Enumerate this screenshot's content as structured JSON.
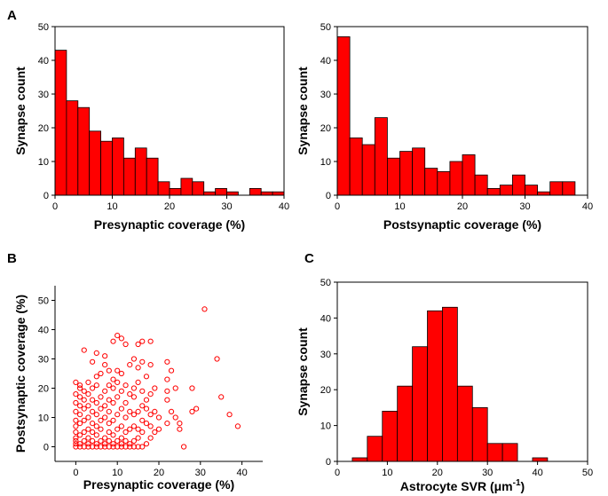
{
  "chart_data": [
    {
      "type": "bar",
      "panel_label": "A",
      "xlabel": "Presynaptic coverage (%)",
      "ylabel": "Synapse count",
      "xlim": [
        0,
        40
      ],
      "ylim": [
        0,
        50
      ],
      "xticks": [
        0,
        10,
        20,
        30,
        40
      ],
      "yticks": [
        0,
        10,
        20,
        30,
        40,
        50
      ],
      "bin_width": 2,
      "bins": [
        {
          "x": 0,
          "count": 43
        },
        {
          "x": 2,
          "count": 28
        },
        {
          "x": 4,
          "count": 26
        },
        {
          "x": 6,
          "count": 19
        },
        {
          "x": 8,
          "count": 16
        },
        {
          "x": 10,
          "count": 17
        },
        {
          "x": 12,
          "count": 11
        },
        {
          "x": 14,
          "count": 14
        },
        {
          "x": 16,
          "count": 11
        },
        {
          "x": 18,
          "count": 4
        },
        {
          "x": 20,
          "count": 2
        },
        {
          "x": 22,
          "count": 5
        },
        {
          "x": 24,
          "count": 4
        },
        {
          "x": 26,
          "count": 1
        },
        {
          "x": 28,
          "count": 2
        },
        {
          "x": 30,
          "count": 1
        },
        {
          "x": 34,
          "count": 2
        },
        {
          "x": 36,
          "count": 1
        },
        {
          "x": 38,
          "count": 1
        }
      ],
      "grid": false,
      "bar_color": "#ff0000"
    },
    {
      "type": "bar",
      "panel_label": "",
      "xlabel": "Postsynaptic coverage (%)",
      "ylabel": "Synapse count",
      "xlim": [
        0,
        40
      ],
      "ylim": [
        0,
        50
      ],
      "xticks": [
        0,
        10,
        20,
        30,
        40
      ],
      "yticks": [
        0,
        10,
        20,
        30,
        40,
        50
      ],
      "bin_width": 2,
      "bins": [
        {
          "x": 0,
          "count": 47
        },
        {
          "x": 2,
          "count": 17
        },
        {
          "x": 4,
          "count": 15
        },
        {
          "x": 6,
          "count": 23
        },
        {
          "x": 8,
          "count": 11
        },
        {
          "x": 10,
          "count": 13
        },
        {
          "x": 12,
          "count": 14
        },
        {
          "x": 14,
          "count": 8
        },
        {
          "x": 16,
          "count": 7
        },
        {
          "x": 18,
          "count": 10
        },
        {
          "x": 20,
          "count": 12
        },
        {
          "x": 22,
          "count": 6
        },
        {
          "x": 24,
          "count": 2
        },
        {
          "x": 26,
          "count": 3
        },
        {
          "x": 28,
          "count": 6
        },
        {
          "x": 30,
          "count": 3
        },
        {
          "x": 32,
          "count": 1
        },
        {
          "x": 34,
          "count": 4
        },
        {
          "x": 36,
          "count": 4
        }
      ],
      "grid": false,
      "bar_color": "#ff0000"
    },
    {
      "type": "scatter",
      "panel_label": "B",
      "xlabel": "Presynaptic coverage (%)",
      "ylabel": "Postsynaptic coverage (%)",
      "xlim": [
        -5,
        45
      ],
      "ylim": [
        -5,
        55
      ],
      "xticks": [
        0,
        10,
        20,
        30,
        40
      ],
      "yticks": [
        0,
        10,
        20,
        30,
        40,
        50
      ],
      "marker": "open-circle",
      "marker_color": "#ff0000",
      "points": [
        [
          0,
          0
        ],
        [
          0,
          1
        ],
        [
          0,
          2
        ],
        [
          0,
          3
        ],
        [
          0,
          5
        ],
        [
          0,
          7
        ],
        [
          0,
          9
        ],
        [
          0,
          12
        ],
        [
          0,
          15
        ],
        [
          0,
          18
        ],
        [
          0,
          22
        ],
        [
          1,
          0
        ],
        [
          1,
          1
        ],
        [
          1,
          4
        ],
        [
          1,
          8
        ],
        [
          1,
          11
        ],
        [
          1,
          14
        ],
        [
          1,
          17
        ],
        [
          1,
          20
        ],
        [
          1,
          21
        ],
        [
          2,
          0
        ],
        [
          2,
          2
        ],
        [
          2,
          5
        ],
        [
          2,
          9
        ],
        [
          2,
          13
        ],
        [
          2,
          16
        ],
        [
          2,
          19
        ],
        [
          2,
          33
        ],
        [
          3,
          0
        ],
        [
          3,
          1
        ],
        [
          3,
          3
        ],
        [
          3,
          6
        ],
        [
          3,
          10
        ],
        [
          3,
          14
        ],
        [
          3,
          18
        ],
        [
          3,
          22
        ],
        [
          4,
          0
        ],
        [
          4,
          2
        ],
        [
          4,
          5
        ],
        [
          4,
          8
        ],
        [
          4,
          12
        ],
        [
          4,
          16
        ],
        [
          4,
          20
        ],
        [
          4,
          29
        ],
        [
          5,
          0
        ],
        [
          5,
          1
        ],
        [
          5,
          4
        ],
        [
          5,
          7
        ],
        [
          5,
          11
        ],
        [
          5,
          15
        ],
        [
          5,
          21
        ],
        [
          5,
          24
        ],
        [
          5,
          32
        ],
        [
          6,
          0
        ],
        [
          6,
          2
        ],
        [
          6,
          6
        ],
        [
          6,
          9
        ],
        [
          6,
          13
        ],
        [
          6,
          17
        ],
        [
          6,
          25
        ],
        [
          7,
          0
        ],
        [
          7,
          1
        ],
        [
          7,
          3
        ],
        [
          7,
          10
        ],
        [
          7,
          14
        ],
        [
          7,
          19
        ],
        [
          7,
          28
        ],
        [
          7,
          31
        ],
        [
          8,
          0
        ],
        [
          8,
          2
        ],
        [
          8,
          5
        ],
        [
          8,
          8
        ],
        [
          8,
          12
        ],
        [
          8,
          16
        ],
        [
          8,
          21
        ],
        [
          8,
          26
        ],
        [
          9,
          0
        ],
        [
          9,
          1
        ],
        [
          9,
          4
        ],
        [
          9,
          9
        ],
        [
          9,
          15
        ],
        [
          9,
          20
        ],
        [
          9,
          23
        ],
        [
          9,
          36
        ],
        [
          10,
          0
        ],
        [
          10,
          2
        ],
        [
          10,
          6
        ],
        [
          10,
          11
        ],
        [
          10,
          17
        ],
        [
          10,
          22
        ],
        [
          10,
          26
        ],
        [
          10,
          38
        ],
        [
          11,
          0
        ],
        [
          11,
          1
        ],
        [
          11,
          3
        ],
        [
          11,
          7
        ],
        [
          11,
          13
        ],
        [
          11,
          19
        ],
        [
          11,
          25
        ],
        [
          11,
          37
        ],
        [
          12,
          0
        ],
        [
          12,
          2
        ],
        [
          12,
          5
        ],
        [
          12,
          10
        ],
        [
          12,
          15
        ],
        [
          12,
          21
        ],
        [
          12,
          35
        ],
        [
          13,
          0
        ],
        [
          13,
          1
        ],
        [
          13,
          6
        ],
        [
          13,
          12
        ],
        [
          13,
          18
        ],
        [
          13,
          28
        ],
        [
          14,
          0
        ],
        [
          14,
          2
        ],
        [
          14,
          7
        ],
        [
          14,
          11
        ],
        [
          14,
          17
        ],
        [
          14,
          20
        ],
        [
          14,
          30
        ],
        [
          15,
          0
        ],
        [
          15,
          3
        ],
        [
          15,
          6
        ],
        [
          15,
          12
        ],
        [
          15,
          22
        ],
        [
          15,
          27
        ],
        [
          15,
          35
        ],
        [
          16,
          0
        ],
        [
          16,
          5
        ],
        [
          16,
          9
        ],
        [
          16,
          14
        ],
        [
          16,
          19
        ],
        [
          16,
          29
        ],
        [
          16,
          36
        ],
        [
          17,
          1
        ],
        [
          17,
          8
        ],
        [
          17,
          13
        ],
        [
          17,
          24
        ],
        [
          17,
          16
        ],
        [
          18,
          3
        ],
        [
          18,
          7
        ],
        [
          18,
          11
        ],
        [
          18,
          18
        ],
        [
          18,
          28
        ],
        [
          18,
          36
        ],
        [
          19,
          5
        ],
        [
          19,
          12
        ],
        [
          19,
          20
        ],
        [
          20,
          6
        ],
        [
          20,
          10
        ],
        [
          22,
          8
        ],
        [
          22,
          16
        ],
        [
          22,
          19
        ],
        [
          22,
          23
        ],
        [
          22,
          29
        ],
        [
          23,
          26
        ],
        [
          23,
          12
        ],
        [
          24,
          20
        ],
        [
          24,
          10
        ],
        [
          25,
          6
        ],
        [
          25,
          8
        ],
        [
          26,
          0
        ],
        [
          28,
          12
        ],
        [
          28,
          20
        ],
        [
          29,
          13
        ],
        [
          31,
          47
        ],
        [
          34,
          30
        ],
        [
          35,
          17
        ],
        [
          37,
          11
        ],
        [
          39,
          7
        ]
      ]
    },
    {
      "type": "bar",
      "panel_label": "C",
      "xlabel": "Astrocyte SVR (μm",
      "xlabel_sup": "-1",
      "xlabel_end": ")",
      "ylabel": "Synapse count",
      "xlim": [
        0,
        50
      ],
      "ylim": [
        0,
        50
      ],
      "xticks": [
        0,
        10,
        20,
        30,
        40,
        50
      ],
      "yticks": [
        0,
        10,
        20,
        30,
        40,
        50
      ],
      "bin_width": 3,
      "bins": [
        {
          "x": 3,
          "count": 1
        },
        {
          "x": 6,
          "count": 7
        },
        {
          "x": 9,
          "count": 14
        },
        {
          "x": 12,
          "count": 21
        },
        {
          "x": 15,
          "count": 32
        },
        {
          "x": 18,
          "count": 42
        },
        {
          "x": 21,
          "count": 43
        },
        {
          "x": 24,
          "count": 21
        },
        {
          "x": 27,
          "count": 15
        },
        {
          "x": 30,
          "count": 5
        },
        {
          "x": 33,
          "count": 5
        },
        {
          "x": 36,
          "count": 0
        },
        {
          "x": 39,
          "count": 1
        }
      ],
      "grid": false,
      "bar_color": "#ff0000"
    }
  ]
}
